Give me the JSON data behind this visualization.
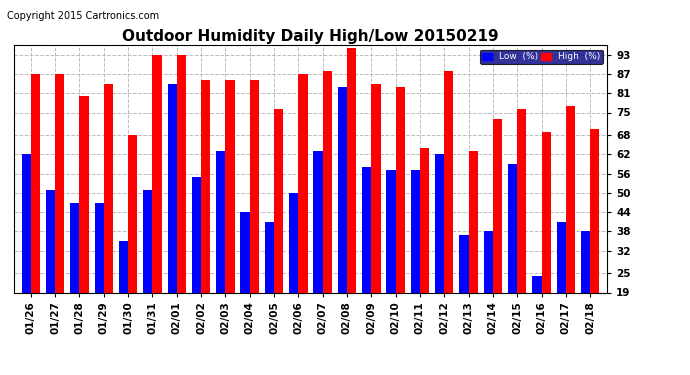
{
  "title": "Outdoor Humidity Daily High/Low 20150219",
  "copyright": "Copyright 2015 Cartronics.com",
  "dates": [
    "01/26",
    "01/27",
    "01/28",
    "01/29",
    "01/30",
    "01/31",
    "02/01",
    "02/02",
    "02/03",
    "02/04",
    "02/05",
    "02/06",
    "02/07",
    "02/08",
    "02/09",
    "02/10",
    "02/11",
    "02/12",
    "02/13",
    "02/14",
    "02/15",
    "02/16",
    "02/17",
    "02/18"
  ],
  "high": [
    87,
    87,
    80,
    84,
    68,
    93,
    93,
    85,
    85,
    85,
    76,
    87,
    88,
    95,
    84,
    83,
    64,
    88,
    63,
    73,
    76,
    69,
    77,
    70
  ],
  "low": [
    62,
    51,
    47,
    47,
    35,
    51,
    84,
    55,
    63,
    44,
    41,
    50,
    63,
    83,
    58,
    57,
    57,
    62,
    37,
    38,
    59,
    24,
    41,
    38
  ],
  "ylim_min": 19,
  "ylim_max": 96,
  "yticks": [
    19,
    25,
    32,
    38,
    44,
    50,
    56,
    62,
    68,
    75,
    81,
    87,
    93
  ],
  "bar_width": 0.38,
  "high_color": "#ff0000",
  "low_color": "#0000ff",
  "bg_color": "#ffffff",
  "grid_color": "#bbbbbb",
  "title_fontsize": 11,
  "copyright_fontsize": 7,
  "tick_fontsize": 7.5,
  "legend_low_label": "Low  (%)",
  "legend_high_label": "High  (%)"
}
